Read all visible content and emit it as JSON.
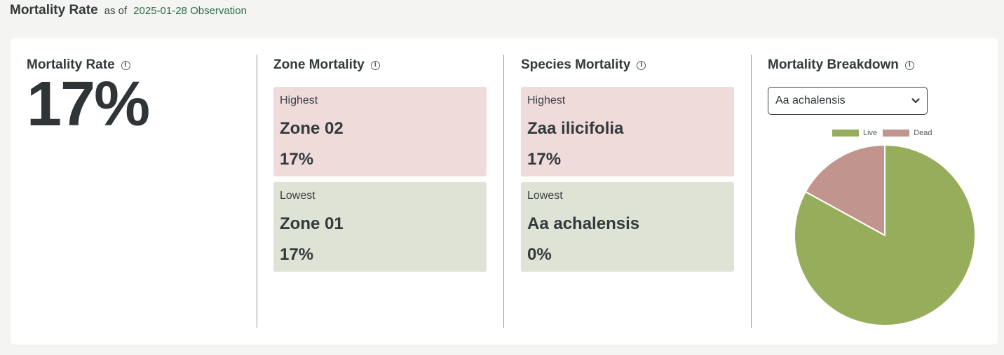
{
  "header": {
    "title": "Mortality Rate",
    "as_of": "as of",
    "observation_link": "2025-01-28 Observation"
  },
  "overall": {
    "title": "Mortality Rate",
    "value": "17%"
  },
  "zone": {
    "title": "Zone Mortality",
    "highest": {
      "label": "Highest",
      "name": "Zone 02",
      "pct": "17%"
    },
    "lowest": {
      "label": "Lowest",
      "name": "Zone 01",
      "pct": "17%"
    }
  },
  "species": {
    "title": "Species Mortality",
    "highest": {
      "label": "Highest",
      "name": "Zaa ilicifolia",
      "pct": "17%"
    },
    "lowest": {
      "label": "Lowest",
      "name": "Aa achalensis",
      "pct": "0%"
    }
  },
  "breakdown": {
    "title": "Mortality Breakdown",
    "selected_species": "Aa achalensis"
  },
  "icons": {
    "info": "info-icon",
    "dropdown": "chevron-down-icon"
  },
  "colors": {
    "live": "#96ae5c",
    "dead": "#c1958e",
    "highest_bg": "#efdbda",
    "lowest_bg": "#dfe3d6",
    "link": "#2e6e44"
  },
  "chart_data": {
    "type": "pie",
    "categories": [
      "Live",
      "Dead"
    ],
    "values": [
      83,
      17
    ],
    "legend": "top"
  }
}
